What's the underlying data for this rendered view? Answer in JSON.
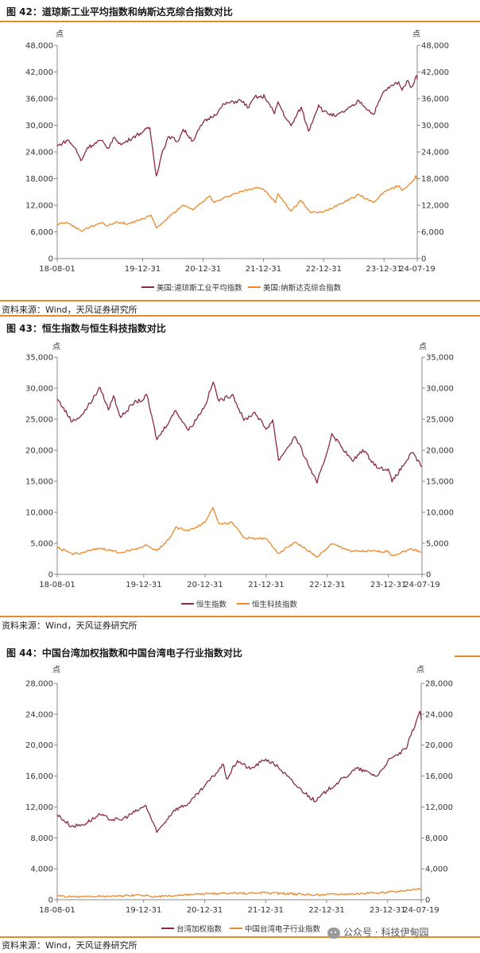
{
  "figures": [
    {
      "title": "图 42：道琼斯工业平均指数和纳斯达克综合指数对比",
      "unit_left": "点",
      "unit_right": "点",
      "source": "资料来源：Wind，天风证券研究所",
      "legend": [
        "美国:道琼斯工业平均指数",
        "美国:纳斯达克综合指数"
      ]
    },
    {
      "title": "图 43：恒生指数与恒生科技指数对比",
      "unit_left": "点",
      "unit_right": "点",
      "source": "资料来源：Wind，天风证券研究所",
      "legend": [
        "恒生指数",
        "恒生科技指数"
      ]
    },
    {
      "title": "图 44：中国台湾加权指数和中国台湾电子行业指数对比",
      "unit_left": "点",
      "unit_right": "点",
      "source": "资料来源：Wind，天风证券研究所",
      "legend": [
        "台湾加权指数",
        "中国台湾电子行业指数"
      ]
    }
  ],
  "watermark": {
    "text": "公众号 · 科技伊甸园",
    "icon": "wechat-icon"
  },
  "colors": {
    "series1": "#8b2a45",
    "series2": "#e8892c",
    "rule": "#e8892c",
    "axis": "#888888"
  },
  "chart_data": [
    {
      "type": "line",
      "x_tick_labels": [
        "18-08-01",
        "19-12-31",
        "20-12-31",
        "21-12-31",
        "22-12-31",
        "23-12-31",
        "24-07-19"
      ],
      "x_ticks": [
        "2018-08-01",
        "2019-12-31",
        "2020-12-31",
        "2021-12-31",
        "2022-12-31",
        "2023-12-31",
        "2024-07-19"
      ],
      "xlim": [
        "2018-08-01",
        "2024-07-19"
      ],
      "ylim": [
        0,
        48000
      ],
      "yticks": [
        0,
        6000,
        12000,
        18000,
        24000,
        30000,
        36000,
        42000,
        48000
      ],
      "ytick_labels": [
        "0",
        "6,000",
        "12,000",
        "18,000",
        "24,000",
        "30,000",
        "36,000",
        "42,000",
        "48,000"
      ],
      "legend_position": "bottom",
      "series": [
        {
          "name": "美国:道琼斯工业平均指数",
          "color": "#8b2a45",
          "points": [
            [
              "2018-08-01",
              25300
            ],
            [
              "2018-10-03",
              26700
            ],
            [
              "2018-11-15",
              25000
            ],
            [
              "2018-12-24",
              22000
            ],
            [
              "2019-01-31",
              25000
            ],
            [
              "2019-04-23",
              26600
            ],
            [
              "2019-06-03",
              24800
            ],
            [
              "2019-07-15",
              27300
            ],
            [
              "2019-08-23",
              25600
            ],
            [
              "2019-11-01",
              27300
            ],
            [
              "2019-12-31",
              28500
            ],
            [
              "2020-02-12",
              29500
            ],
            [
              "2020-03-23",
              18600
            ],
            [
              "2020-04-30",
              24300
            ],
            [
              "2020-06-08",
              27500
            ],
            [
              "2020-07-31",
              26400
            ],
            [
              "2020-09-02",
              29100
            ],
            [
              "2020-10-30",
              26500
            ],
            [
              "2020-12-31",
              30600
            ],
            [
              "2021-03-31",
              33000
            ],
            [
              "2021-05-07",
              34800
            ],
            [
              "2021-08-16",
              35600
            ],
            [
              "2021-10-04",
              34000
            ],
            [
              "2021-11-08",
              36400
            ],
            [
              "2021-12-31",
              36300
            ],
            [
              "2022-01-04",
              36800
            ],
            [
              "2022-03-08",
              32600
            ],
            [
              "2022-03-29",
              35300
            ],
            [
              "2022-05-20",
              31300
            ],
            [
              "2022-06-17",
              29900
            ],
            [
              "2022-08-16",
              34100
            ],
            [
              "2022-09-30",
              28700
            ],
            [
              "2022-11-30",
              34600
            ],
            [
              "2022-12-31",
              33100
            ],
            [
              "2023-03-15",
              32000
            ],
            [
              "2023-06-30",
              34400
            ],
            [
              "2023-07-31",
              35600
            ],
            [
              "2023-10-27",
              32400
            ],
            [
              "2023-12-31",
              37700
            ],
            [
              "2024-03-28",
              39800
            ],
            [
              "2024-04-19",
              37900
            ],
            [
              "2024-05-17",
              40000
            ],
            [
              "2024-06-14",
              38600
            ],
            [
              "2024-07-17",
              41200
            ],
            [
              "2024-07-19",
              40300
            ]
          ]
        },
        {
          "name": "美国:纳斯达克综合指数",
          "color": "#e8892c",
          "points": [
            [
              "2018-08-01",
              7700
            ],
            [
              "2018-08-29",
              8100
            ],
            [
              "2018-10-01",
              8000
            ],
            [
              "2018-12-24",
              6200
            ],
            [
              "2019-03-29",
              7700
            ],
            [
              "2019-05-03",
              8150
            ],
            [
              "2019-06-03",
              7330
            ],
            [
              "2019-07-26",
              8300
            ],
            [
              "2019-10-02",
              7800
            ],
            [
              "2019-12-31",
              8970
            ],
            [
              "2020-02-19",
              9800
            ],
            [
              "2020-03-23",
              6860
            ],
            [
              "2020-06-30",
              10060
            ],
            [
              "2020-09-02",
              12000
            ],
            [
              "2020-10-30",
              10900
            ],
            [
              "2020-12-31",
              12890
            ],
            [
              "2021-02-12",
              14100
            ],
            [
              "2021-03-08",
              12600
            ],
            [
              "2021-06-30",
              14500
            ],
            [
              "2021-11-19",
              16060
            ],
            [
              "2021-12-31",
              15650
            ],
            [
              "2022-03-14",
              12580
            ],
            [
              "2022-03-29",
              14600
            ],
            [
              "2022-06-16",
              10650
            ],
            [
              "2022-08-15",
              13130
            ],
            [
              "2022-10-13",
              10320
            ],
            [
              "2022-12-31",
              10470
            ],
            [
              "2023-03-31",
              12200
            ],
            [
              "2023-07-31",
              14350
            ],
            [
              "2023-10-27",
              12600
            ],
            [
              "2023-12-31",
              15000
            ],
            [
              "2024-03-28",
              16400
            ],
            [
              "2024-04-19",
              15280
            ],
            [
              "2024-06-28",
              17730
            ],
            [
              "2024-07-10",
              18650
            ],
            [
              "2024-07-19",
              17730
            ]
          ]
        }
      ]
    },
    {
      "type": "line",
      "x_tick_labels": [
        "18-08-01",
        "19-12-31",
        "20-12-31",
        "21-12-31",
        "22-12-31",
        "23-12-31",
        "24-07-19"
      ],
      "x_ticks": [
        "2018-08-01",
        "2019-12-31",
        "2020-12-31",
        "2021-12-31",
        "2022-12-31",
        "2023-12-31",
        "2024-07-19"
      ],
      "xlim": [
        "2018-08-01",
        "2024-07-19"
      ],
      "ylim": [
        0,
        35000
      ],
      "yticks": [
        0,
        5000,
        10000,
        15000,
        20000,
        25000,
        30000,
        35000
      ],
      "ytick_labels": [
        "0",
        "5,000",
        "10,000",
        "15,000",
        "20,000",
        "25,000",
        "30,000",
        "35,000"
      ],
      "legend_position": "bottom",
      "series": [
        {
          "name": "恒生指数",
          "color": "#8b2a45",
          "points": [
            [
              "2018-08-01",
              28300
            ],
            [
              "2018-10-30",
              24600
            ],
            [
              "2018-12-31",
              25800
            ],
            [
              "2019-04-15",
              30100
            ],
            [
              "2019-06-03",
              26500
            ],
            [
              "2019-07-03",
              28800
            ],
            [
              "2019-08-15",
              25300
            ],
            [
              "2019-11-04",
              27700
            ],
            [
              "2019-12-31",
              28200
            ],
            [
              "2020-01-17",
              29000
            ],
            [
              "2020-03-19",
              21700
            ],
            [
              "2020-06-08",
              25100
            ],
            [
              "2020-07-09",
              26400
            ],
            [
              "2020-09-24",
              23200
            ],
            [
              "2020-12-31",
              27200
            ],
            [
              "2021-02-18",
              31000
            ],
            [
              "2021-03-24",
              27900
            ],
            [
              "2021-06-14",
              29000
            ],
            [
              "2021-08-20",
              24800
            ],
            [
              "2021-10-25",
              26100
            ],
            [
              "2021-12-31",
              23400
            ],
            [
              "2022-02-09",
              24900
            ],
            [
              "2022-03-15",
              18400
            ],
            [
              "2022-06-23",
              22200
            ],
            [
              "2022-10-31",
              14700
            ],
            [
              "2022-12-31",
              19800
            ],
            [
              "2023-01-27",
              22700
            ],
            [
              "2023-05-31",
              18200
            ],
            [
              "2023-07-31",
              20100
            ],
            [
              "2023-10-31",
              17100
            ],
            [
              "2023-12-31",
              17000
            ],
            [
              "2024-01-22",
              14900
            ],
            [
              "2024-05-20",
              19600
            ],
            [
              "2024-07-19",
              17400
            ]
          ]
        },
        {
          "name": "恒生科技指数",
          "color": "#e8892c",
          "points": [
            [
              "2018-08-01",
              4300
            ],
            [
              "2018-10-30",
              3300
            ],
            [
              "2018-12-31",
              3500
            ],
            [
              "2019-04-15",
              4200
            ],
            [
              "2019-08-15",
              3500
            ],
            [
              "2019-12-31",
              4500
            ],
            [
              "2020-01-17",
              4700
            ],
            [
              "2020-03-19",
              3800
            ],
            [
              "2020-06-08",
              6000
            ],
            [
              "2020-07-09",
              7600
            ],
            [
              "2020-09-24",
              7000
            ],
            [
              "2020-12-31",
              8400
            ],
            [
              "2021-02-17",
              10800
            ],
            [
              "2021-03-24",
              8200
            ],
            [
              "2021-06-14",
              8300
            ],
            [
              "2021-08-20",
              5900
            ],
            [
              "2021-12-31",
              5700
            ],
            [
              "2022-03-15",
              3400
            ],
            [
              "2022-06-23",
              5200
            ],
            [
              "2022-10-31",
              2800
            ],
            [
              "2022-12-31",
              4200
            ],
            [
              "2023-01-27",
              4900
            ],
            [
              "2023-05-31",
              3700
            ],
            [
              "2023-12-31",
              3700
            ],
            [
              "2024-01-22",
              3000
            ],
            [
              "2024-05-20",
              4100
            ],
            [
              "2024-07-19",
              3600
            ]
          ]
        }
      ]
    },
    {
      "type": "line",
      "x_tick_labels": [
        "18-08-01",
        "19-12-31",
        "20-12-31",
        "21-12-31",
        "22-12-31",
        "23-12-31",
        "24-07-19"
      ],
      "x_ticks": [
        "2018-08-01",
        "2019-12-31",
        "2020-12-31",
        "2021-12-31",
        "2022-12-31",
        "2023-12-31",
        "2024-07-19"
      ],
      "xlim": [
        "2018-08-01",
        "2024-07-19"
      ],
      "ylim": [
        0,
        28000
      ],
      "yticks": [
        0,
        4000,
        8000,
        12000,
        16000,
        20000,
        24000,
        28000
      ],
      "ytick_labels": [
        "0",
        "4,000",
        "8,000",
        "12,000",
        "16,000",
        "20,000",
        "24,000",
        "28,000"
      ],
      "legend_position": "bottom",
      "series": [
        {
          "name": "台湾加权指数",
          "color": "#8b2a45",
          "points": [
            [
              "2018-08-01",
              11000
            ],
            [
              "2018-10-25",
              9500
            ],
            [
              "2018-12-31",
              9700
            ],
            [
              "2019-04-15",
              11000
            ],
            [
              "2019-05-31",
              10500
            ],
            [
              "2019-08-15",
              10300
            ],
            [
              "2019-12-31",
              12000
            ],
            [
              "2020-01-14",
              12200
            ],
            [
              "2020-03-19",
              8700
            ],
            [
              "2020-06-30",
              11600
            ],
            [
              "2020-09-30",
              12500
            ],
            [
              "2020-12-31",
              14700
            ],
            [
              "2021-04-23",
              17500
            ],
            [
              "2021-05-12",
              15600
            ],
            [
              "2021-07-15",
              18000
            ],
            [
              "2021-09-30",
              16900
            ],
            [
              "2021-12-31",
              18200
            ],
            [
              "2022-03-15",
              17200
            ],
            [
              "2022-06-30",
              14800
            ],
            [
              "2022-10-25",
              12700
            ],
            [
              "2022-12-31",
              14100
            ],
            [
              "2023-06-30",
              17000
            ],
            [
              "2023-10-31",
              16000
            ],
            [
              "2023-12-31",
              17900
            ],
            [
              "2024-04-19",
              19500
            ],
            [
              "2024-07-11",
              24400
            ],
            [
              "2024-07-19",
              23300
            ]
          ]
        },
        {
          "name": "中国台湾电子行业指数",
          "color": "#e8892c",
          "points": [
            [
              "2018-08-01",
              440
            ],
            [
              "2018-12-31",
              390
            ],
            [
              "2019-12-31",
              560
            ],
            [
              "2020-03-19",
              380
            ],
            [
              "2020-12-31",
              730
            ],
            [
              "2021-12-31",
              900
            ],
            [
              "2022-10-25",
              610
            ],
            [
              "2022-12-31",
              690
            ],
            [
              "2023-12-31",
              920
            ],
            [
              "2024-07-11",
              1380
            ],
            [
              "2024-07-19",
              1330
            ]
          ]
        }
      ]
    }
  ]
}
